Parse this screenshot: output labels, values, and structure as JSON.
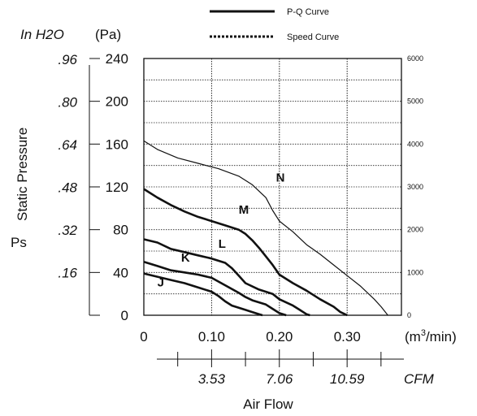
{
  "chart_data": {
    "type": "line",
    "legend": [
      {
        "label": "P-Q Curve",
        "style": "solid"
      },
      {
        "label": "Speed Curve",
        "style": "dotted"
      }
    ],
    "axes": {
      "left_outer_unit": "In H2O",
      "left_inner_unit": "(Pa)",
      "ylabel": "Static Pressure",
      "ylabel_symbol": "Ps",
      "y_ticks_pa": [
        "240",
        "200",
        "160",
        "120",
        "80",
        "40",
        "0"
      ],
      "y_ticks_inh2o": [
        ".96",
        ".80",
        ".64",
        ".48",
        ".32",
        ".16"
      ],
      "ylim": [
        0,
        240
      ],
      "right_ticks": [
        "6000",
        "5000",
        "4000",
        "3000",
        "2000",
        "1000",
        "0"
      ],
      "right_lim": [
        0,
        6000
      ],
      "x_ticks": [
        "0",
        "0.10",
        "0.20",
        "0.30"
      ],
      "x_unit_pre": "(m",
      "x_unit_sup": "3",
      "x_unit_post": "/min)",
      "xlim": [
        0,
        0.38
      ],
      "x_secondary_ticks": [
        "3.53",
        "7.06",
        "10.59"
      ],
      "x_secondary_unit": "CFM",
      "xlabel": "Air Flow"
    },
    "series": [
      {
        "name": "N",
        "style": "thin",
        "points": [
          [
            0,
            163
          ],
          [
            0.02,
            155
          ],
          [
            0.05,
            147
          ],
          [
            0.08,
            142
          ],
          [
            0.11,
            137
          ],
          [
            0.14,
            130
          ],
          [
            0.16,
            122
          ],
          [
            0.18,
            110
          ],
          [
            0.19,
            98
          ],
          [
            0.2,
            88
          ],
          [
            0.22,
            78
          ],
          [
            0.24,
            66
          ],
          [
            0.26,
            57
          ],
          [
            0.28,
            47
          ],
          [
            0.3,
            37
          ],
          [
            0.32,
            27
          ],
          [
            0.34,
            15
          ],
          [
            0.35,
            8
          ],
          [
            0.36,
            0
          ]
        ]
      },
      {
        "name": "M",
        "style": "thick",
        "points": [
          [
            0,
            118
          ],
          [
            0.02,
            110
          ],
          [
            0.04,
            103
          ],
          [
            0.06,
            97
          ],
          [
            0.08,
            92
          ],
          [
            0.1,
            88
          ],
          [
            0.12,
            84
          ],
          [
            0.14,
            80
          ],
          [
            0.15,
            76
          ],
          [
            0.16,
            70
          ],
          [
            0.17,
            63
          ],
          [
            0.18,
            55
          ],
          [
            0.19,
            47
          ],
          [
            0.2,
            38
          ],
          [
            0.22,
            30
          ],
          [
            0.24,
            23
          ],
          [
            0.26,
            15
          ],
          [
            0.28,
            8
          ],
          [
            0.29,
            3
          ],
          [
            0.3,
            0
          ]
        ]
      },
      {
        "name": "L",
        "style": "thick",
        "points": [
          [
            0,
            71
          ],
          [
            0.02,
            68
          ],
          [
            0.04,
            62
          ],
          [
            0.06,
            59
          ],
          [
            0.08,
            56
          ],
          [
            0.1,
            53
          ],
          [
            0.12,
            49
          ],
          [
            0.13,
            44
          ],
          [
            0.14,
            37
          ],
          [
            0.15,
            30
          ],
          [
            0.17,
            24
          ],
          [
            0.19,
            20
          ],
          [
            0.2,
            15
          ],
          [
            0.22,
            9
          ],
          [
            0.23,
            5
          ],
          [
            0.24,
            1
          ],
          [
            0.245,
            0
          ]
        ]
      },
      {
        "name": "K",
        "style": "thick",
        "points": [
          [
            0,
            50
          ],
          [
            0.02,
            46
          ],
          [
            0.04,
            42
          ],
          [
            0.06,
            40
          ],
          [
            0.08,
            38
          ],
          [
            0.1,
            35
          ],
          [
            0.12,
            28
          ],
          [
            0.14,
            21
          ],
          [
            0.15,
            17
          ],
          [
            0.16,
            14
          ],
          [
            0.18,
            10
          ],
          [
            0.19,
            6
          ],
          [
            0.2,
            2
          ],
          [
            0.21,
            0
          ]
        ]
      },
      {
        "name": "J",
        "style": "thick",
        "points": [
          [
            0,
            39
          ],
          [
            0.02,
            36
          ],
          [
            0.04,
            33
          ],
          [
            0.06,
            30
          ],
          [
            0.08,
            26
          ],
          [
            0.1,
            22
          ],
          [
            0.11,
            18
          ],
          [
            0.12,
            13
          ],
          [
            0.13,
            9
          ],
          [
            0.14,
            7
          ],
          [
            0.15,
            5
          ],
          [
            0.16,
            3
          ],
          [
            0.17,
            1
          ],
          [
            0.175,
            0
          ]
        ]
      }
    ],
    "curve_labels": [
      {
        "text": "N",
        "x": 0.195,
        "y": 125
      },
      {
        "text": "M",
        "x": 0.14,
        "y": 95
      },
      {
        "text": "L",
        "x": 0.11,
        "y": 63
      },
      {
        "text": "K",
        "x": 0.055,
        "y": 50
      },
      {
        "text": "J",
        "x": 0.02,
        "y": 27
      }
    ]
  }
}
